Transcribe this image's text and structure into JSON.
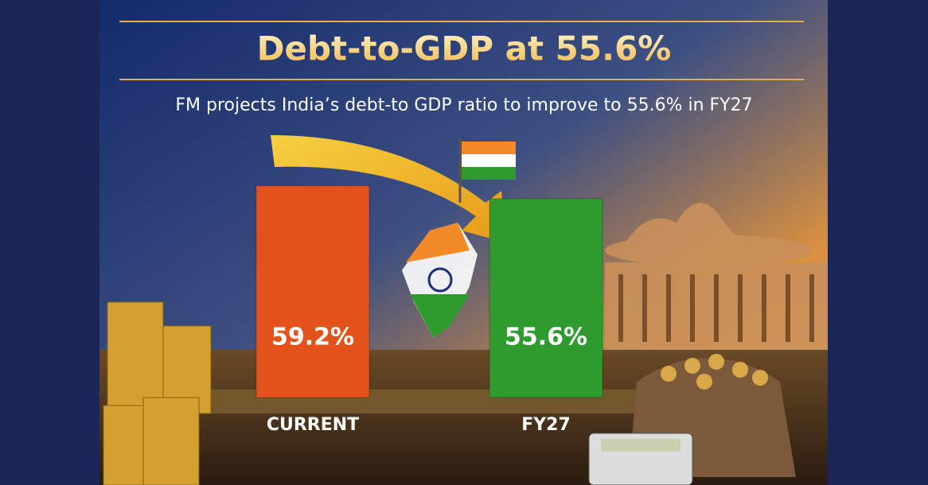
{
  "chart_data": {
    "type": "bar",
    "title": "Debt-to-GDP at 55.6%",
    "subtitle": "FM projects India’s debt-to GDP ratio to improve to 55.6% in FY27",
    "categories": [
      "CURRENT",
      "FY27"
    ],
    "values": [
      59.2,
      55.6
    ],
    "value_labels": [
      "59.2%",
      "55.6%"
    ],
    "colors": [
      "#e4521c",
      "#2f9a2e"
    ]
  }
}
